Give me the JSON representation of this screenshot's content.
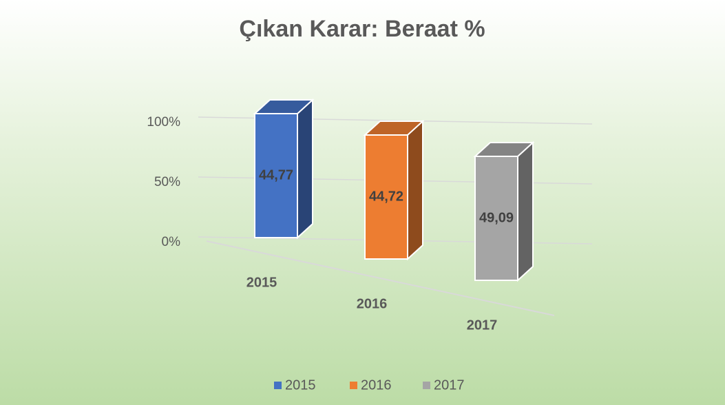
{
  "chart_data": {
    "type": "stacked_percent_bar_3d",
    "title": "Çıkan Karar: Beraat %",
    "categories": [
      "2015",
      "2016",
      "2017"
    ],
    "series": [
      {
        "name": "2015",
        "color": "#4472c4",
        "values": [
          44.77,
          null,
          null
        ],
        "value_labels": [
          "44,77",
          null,
          null
        ]
      },
      {
        "name": "2016",
        "color": "#ed7d31",
        "values": [
          null,
          44.72,
          null
        ],
        "value_labels": [
          null,
          "44,72",
          null
        ]
      },
      {
        "name": "2017",
        "color": "#a5a5a5",
        "values": [
          null,
          null,
          49.09
        ],
        "value_labels": [
          null,
          null,
          "49,09"
        ]
      }
    ],
    "ylim": [
      0,
      100
    ],
    "yticks": [
      {
        "value": 0,
        "label": "0%"
      },
      {
        "value": 50,
        "label": "50%"
      },
      {
        "value": 100,
        "label": "100%"
      }
    ],
    "grid": true,
    "legend": "bottom"
  }
}
